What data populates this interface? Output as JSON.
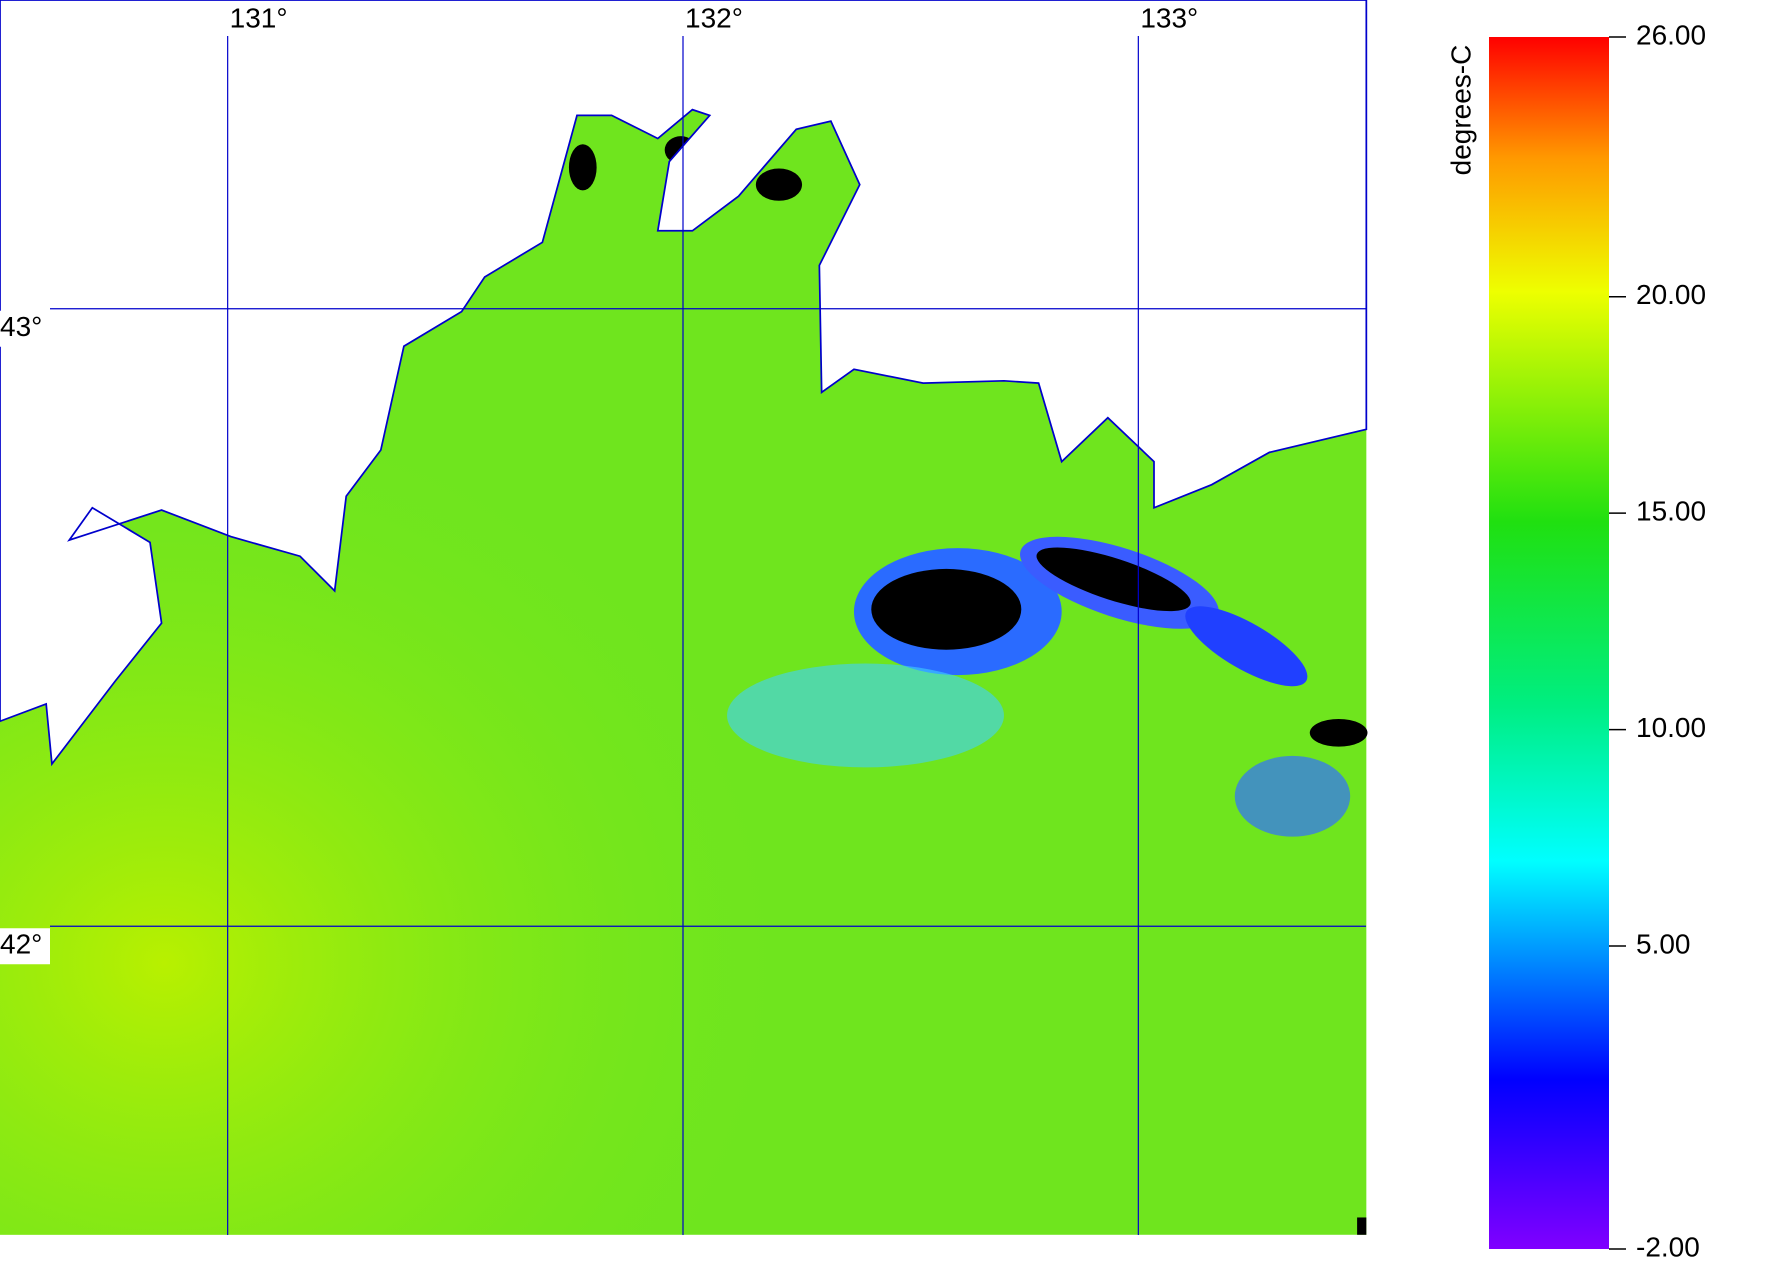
{
  "map": {
    "lon_labels": [
      {
        "value": 131,
        "label": "131°"
      },
      {
        "value": 132,
        "label": "132°"
      },
      {
        "value": 133,
        "label": "133°"
      }
    ],
    "lat_labels": [
      {
        "value": 43,
        "label": "43°"
      },
      {
        "value": 42,
        "label": "42°"
      }
    ],
    "lonlim": [
      130.5,
      133.5
    ],
    "latlim": [
      41.5,
      43.5
    ]
  },
  "colorbar": {
    "label": "degrees-C",
    "lim": [
      -2,
      26
    ],
    "ticks": [
      {
        "value": 26,
        "label": "26.00"
      },
      {
        "value": 20,
        "label": "20.00"
      },
      {
        "value": 15,
        "label": "15.00"
      },
      {
        "value": 10,
        "label": "10.00"
      },
      {
        "value": 5,
        "label": "5.00"
      },
      {
        "value": -2,
        "label": "-2.00"
      }
    ]
  }
}
